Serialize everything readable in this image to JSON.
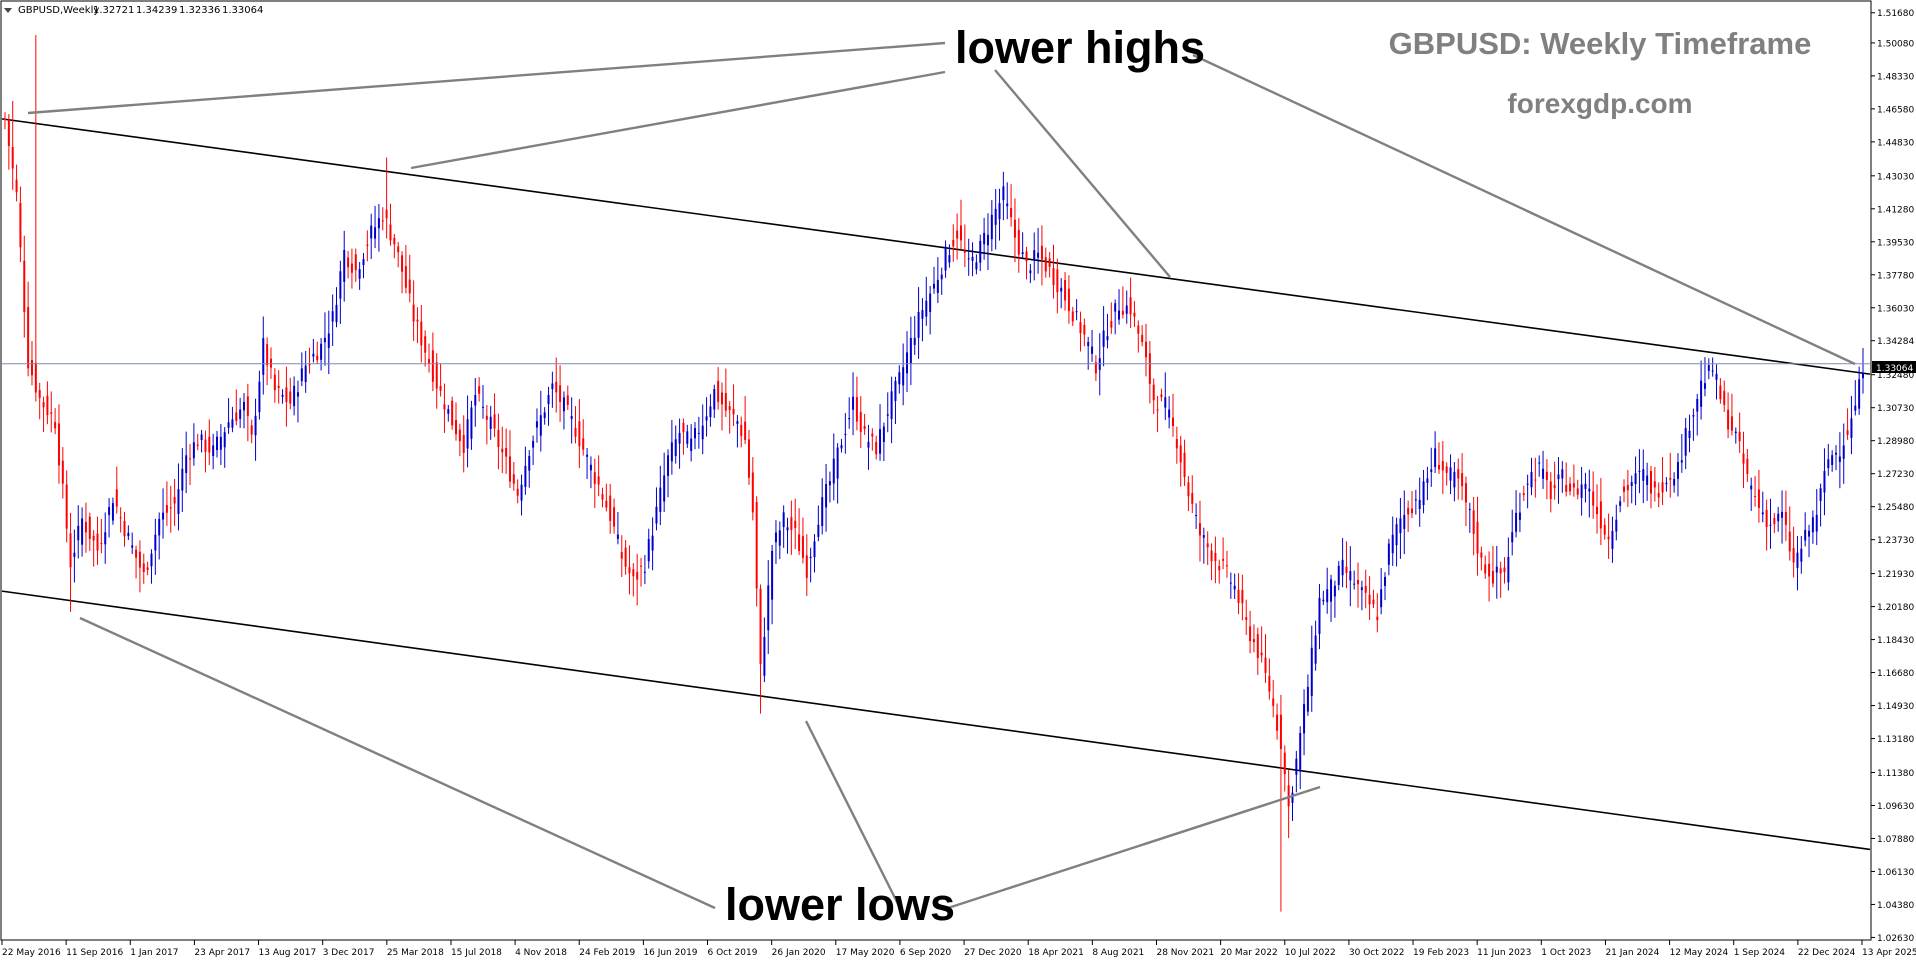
{
  "chart_data": {
    "type": "candlestick",
    "symbol_header": "GBPUSD,Weekly",
    "ohlc_header": [
      "1.32721",
      "1.34239",
      "1.32336",
      "1.33064"
    ],
    "title": "GBPUSD: Weekly Timeframe",
    "subtitle": "forexgdp.com",
    "current_price_label": "1.33064",
    "current_price": 1.33064,
    "ylim": [
      1.026,
      1.5225
    ],
    "y_ticks": [
      "1.51680",
      "1.50080",
      "1.48330",
      "1.46580",
      "1.44830",
      "1.43030",
      "1.41280",
      "1.39530",
      "1.37780",
      "1.36030",
      "1.34284",
      "1.32480",
      "1.30730",
      "1.28980",
      "1.27230",
      "1.25480",
      "1.23730",
      "1.21930",
      "1.20180",
      "1.18430",
      "1.16680",
      "1.14930",
      "1.13180",
      "1.11380",
      "1.09630",
      "1.07880",
      "1.06130",
      "1.04380",
      "1.02630"
    ],
    "x_ticks": [
      "22 May 2016",
      "11 Sep 2016",
      "1 Jan 2017",
      "23 Apr 2017",
      "13 Aug 2017",
      "3 Dec 2017",
      "25 Mar 2018",
      "15 Jul 2018",
      "4 Nov 2018",
      "24 Feb 2019",
      "16 Jun 2019",
      "6 Oct 2019",
      "26 Jan 2020",
      "17 May 2020",
      "6 Sep 2020",
      "27 Dec 2020",
      "18 Apr 2021",
      "8 Aug 2021",
      "28 Nov 2021",
      "20 Mar 2022",
      "10 Jul 2022",
      "30 Oct 2022",
      "19 Feb 2023",
      "11 Jun 2023",
      "1 Oct 2023",
      "21 Jan 2024",
      "12 May 2024",
      "1 Sep 2024",
      "22 Dec 2024",
      "13 Apr 2025"
    ],
    "colors": {
      "bull": "#0000cc",
      "bear": "#ff0000",
      "channel": "#000000",
      "pointer": "#808080",
      "price_line": "#7b8cb0",
      "title": "#808080"
    },
    "price_path": [
      [
        0,
        1.46
      ],
      [
        3,
        1.42
      ],
      [
        6,
        1.332
      ],
      [
        9,
        1.312
      ],
      [
        13,
        1.3
      ],
      [
        17,
        1.225
      ],
      [
        20,
        1.248
      ],
      [
        24,
        1.232
      ],
      [
        28,
        1.26
      ],
      [
        32,
        1.238
      ],
      [
        36,
        1.218
      ],
      [
        40,
        1.248
      ],
      [
        44,
        1.256
      ],
      [
        47,
        1.282
      ],
      [
        50,
        1.29
      ],
      [
        54,
        1.284
      ],
      [
        58,
        1.3
      ],
      [
        62,
        1.308
      ],
      [
        64,
        1.29
      ],
      [
        67,
        1.34
      ],
      [
        70,
        1.316
      ],
      [
        74,
        1.31
      ],
      [
        78,
        1.33
      ],
      [
        82,
        1.34
      ],
      [
        85,
        1.355
      ],
      [
        88,
        1.39
      ],
      [
        91,
        1.38
      ],
      [
        95,
        1.4
      ],
      [
        98,
        1.41
      ],
      [
        101,
        1.395
      ],
      [
        103,
        1.38
      ],
      [
        106,
        1.355
      ],
      [
        109,
        1.338
      ],
      [
        112,
        1.32
      ],
      [
        116,
        1.3
      ],
      [
        119,
        1.288
      ],
      [
        122,
        1.314
      ],
      [
        126,
        1.298
      ],
      [
        130,
        1.278
      ],
      [
        133,
        1.262
      ],
      [
        136,
        1.286
      ],
      [
        139,
        1.302
      ],
      [
        142,
        1.318
      ],
      [
        145,
        1.308
      ],
      [
        148,
        1.296
      ],
      [
        151,
        1.28
      ],
      [
        154,
        1.266
      ],
      [
        157,
        1.25
      ],
      [
        160,
        1.228
      ],
      [
        163,
        1.215
      ],
      [
        166,
        1.225
      ],
      [
        169,
        1.252
      ],
      [
        172,
        1.28
      ],
      [
        175,
        1.294
      ],
      [
        178,
        1.288
      ],
      [
        181,
        1.3
      ],
      [
        184,
        1.316
      ],
      [
        187,
        1.306
      ],
      [
        190,
        1.3
      ],
      [
        192,
        1.29
      ],
      [
        194,
        1.252
      ],
      [
        196,
        1.168
      ],
      [
        199,
        1.232
      ],
      [
        202,
        1.248
      ],
      [
        205,
        1.24
      ],
      [
        208,
        1.222
      ],
      [
        211,
        1.25
      ],
      [
        214,
        1.268
      ],
      [
        217,
        1.29
      ],
      [
        220,
        1.31
      ],
      [
        223,
        1.292
      ],
      [
        226,
        1.286
      ],
      [
        229,
        1.306
      ],
      [
        232,
        1.322
      ],
      [
        235,
        1.342
      ],
      [
        238,
        1.36
      ],
      [
        241,
        1.372
      ],
      [
        244,
        1.388
      ],
      [
        247,
        1.4
      ],
      [
        250,
        1.382
      ],
      [
        253,
        1.392
      ],
      [
        256,
        1.408
      ],
      [
        259,
        1.42
      ],
      [
        262,
        1.398
      ],
      [
        265,
        1.382
      ],
      [
        268,
        1.388
      ],
      [
        271,
        1.38
      ],
      [
        274,
        1.37
      ],
      [
        277,
        1.358
      ],
      [
        280,
        1.345
      ],
      [
        283,
        1.33
      ],
      [
        286,
        1.35
      ],
      [
        289,
        1.362
      ],
      [
        292,
        1.36
      ],
      [
        295,
        1.34
      ],
      [
        298,
        1.312
      ],
      [
        301,
        1.308
      ],
      [
        304,
        1.29
      ],
      [
        307,
        1.262
      ],
      [
        310,
        1.24
      ],
      [
        313,
        1.23
      ],
      [
        316,
        1.222
      ],
      [
        319,
        1.212
      ],
      [
        322,
        1.192
      ],
      [
        325,
        1.178
      ],
      [
        328,
        1.158
      ],
      [
        331,
        1.13
      ],
      [
        333,
        1.095
      ],
      [
        335,
        1.12
      ],
      [
        338,
        1.16
      ],
      [
        341,
        1.205
      ],
      [
        344,
        1.212
      ],
      [
        347,
        1.222
      ],
      [
        350,
        1.215
      ],
      [
        353,
        1.205
      ],
      [
        356,
        1.198
      ],
      [
        359,
        1.232
      ],
      [
        362,
        1.248
      ],
      [
        365,
        1.256
      ],
      [
        368,
        1.264
      ],
      [
        371,
        1.282
      ],
      [
        374,
        1.272
      ],
      [
        377,
        1.268
      ],
      [
        380,
        1.25
      ],
      [
        383,
        1.225
      ],
      [
        386,
        1.218
      ],
      [
        389,
        1.22
      ],
      [
        392,
        1.25
      ],
      [
        395,
        1.27
      ],
      [
        398,
        1.275
      ],
      [
        401,
        1.262
      ],
      [
        404,
        1.27
      ],
      [
        407,
        1.262
      ],
      [
        410,
        1.268
      ],
      [
        413,
        1.252
      ],
      [
        416,
        1.238
      ],
      [
        419,
        1.26
      ],
      [
        422,
        1.268
      ],
      [
        425,
        1.272
      ],
      [
        428,
        1.262
      ],
      [
        431,
        1.27
      ],
      [
        434,
        1.276
      ],
      [
        437,
        1.3
      ],
      [
        440,
        1.32
      ],
      [
        443,
        1.328
      ],
      [
        446,
        1.305
      ],
      [
        449,
        1.292
      ],
      [
        452,
        1.27
      ],
      [
        455,
        1.255
      ],
      [
        458,
        1.245
      ],
      [
        461,
        1.25
      ],
      [
        464,
        1.224
      ],
      [
        467,
        1.238
      ],
      [
        470,
        1.252
      ],
      [
        473,
        1.28
      ],
      [
        476,
        1.286
      ],
      [
        479,
        1.3
      ],
      [
        481,
        1.318
      ],
      [
        482,
        1.3306
      ]
    ],
    "channel_upper": {
      "points": [
        [
          "22 May 2016",
          1.4605
        ],
        [
          "13 Apr 2025",
          1.3251
        ]
      ]
    },
    "channel_lower": {
      "points": [
        [
          "22 May 2016",
          1.21
        ],
        [
          "13 Apr 2025",
          1.073
        ]
      ]
    }
  },
  "annotations": {
    "lower_highs": "lower highs",
    "lower_lows": "lower lows"
  }
}
